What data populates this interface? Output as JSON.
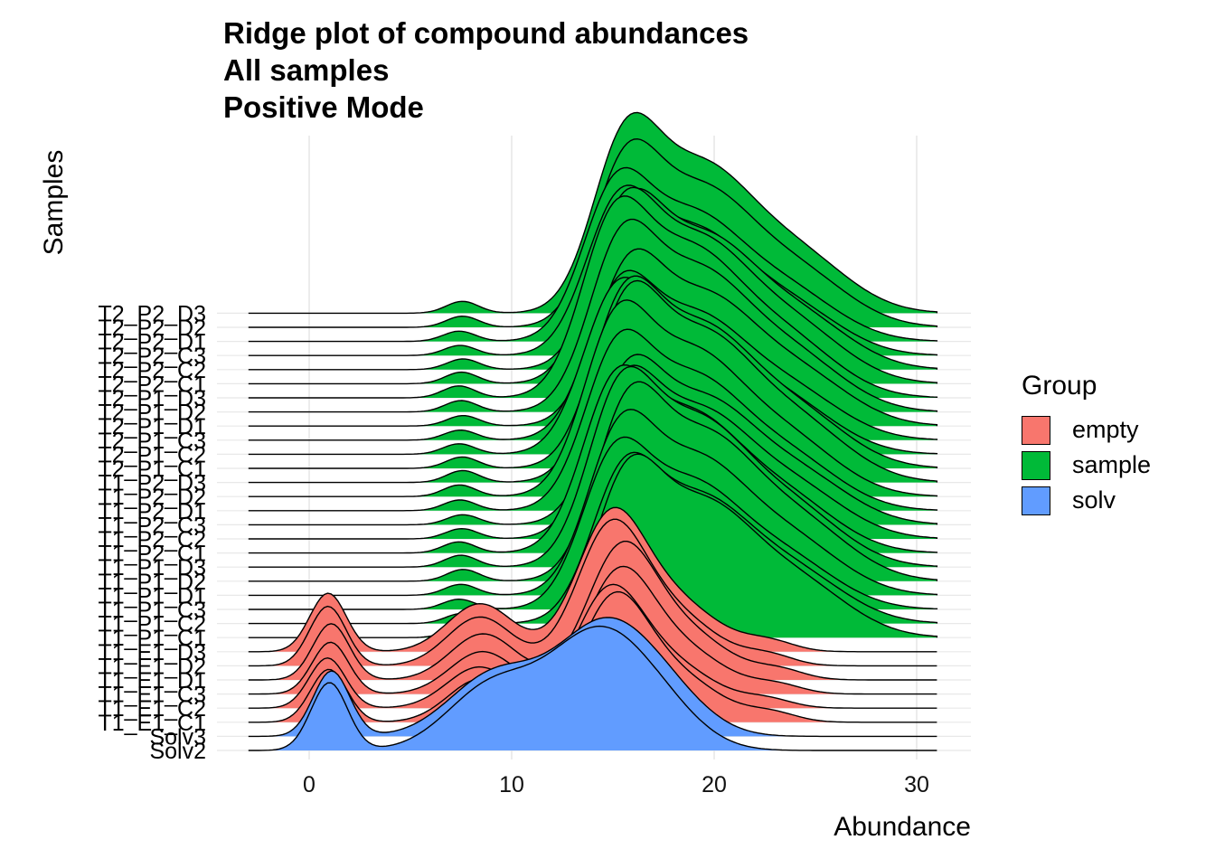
{
  "chart_data": {
    "type": "ridgeline",
    "title": [
      "Ridge plot of compound abundances",
      "All samples",
      "Positive Mode"
    ],
    "xlabel": "Abundance",
    "ylabel": "Samples",
    "xlim": [
      -3,
      31
    ],
    "x_ticks": [
      0,
      10,
      20,
      30
    ],
    "grid": true,
    "legend": {
      "title": "Group",
      "position": "right",
      "items": [
        {
          "name": "empty",
          "color": "#F8766D"
        },
        {
          "name": "sample",
          "color": "#00BA38"
        },
        {
          "name": "solv",
          "color": "#619CFF"
        }
      ]
    },
    "samples": [
      {
        "label": "Solv2",
        "group": "solv"
      },
      {
        "label": "Solv3",
        "group": "solv"
      },
      {
        "label": "T1_E1_C1",
        "group": "empty"
      },
      {
        "label": "T1_E1_C2",
        "group": "empty"
      },
      {
        "label": "T1_E1_C3",
        "group": "empty"
      },
      {
        "label": "T1_E1_D1",
        "group": "empty"
      },
      {
        "label": "T1_E1_D2",
        "group": "empty"
      },
      {
        "label": "T1_E1_D3",
        "group": "empty"
      },
      {
        "label": "T1_P1_C1",
        "group": "sample"
      },
      {
        "label": "T1_P1_C2",
        "group": "sample"
      },
      {
        "label": "T1_P1_C3",
        "group": "sample"
      },
      {
        "label": "T1_P1_D1",
        "group": "sample"
      },
      {
        "label": "T1_P1_D2",
        "group": "sample"
      },
      {
        "label": "T1_P1_D3",
        "group": "sample"
      },
      {
        "label": "T1_P2_C1",
        "group": "sample"
      },
      {
        "label": "T1_P2_C2",
        "group": "sample"
      },
      {
        "label": "T1_P2_C3",
        "group": "sample"
      },
      {
        "label": "T1_P2_D1",
        "group": "sample"
      },
      {
        "label": "T1_P2_D2",
        "group": "sample"
      },
      {
        "label": "T1_P2_D3",
        "group": "sample"
      },
      {
        "label": "T2_P1_C1",
        "group": "sample"
      },
      {
        "label": "T2_P1_C2",
        "group": "sample"
      },
      {
        "label": "T2_P1_C3",
        "group": "sample"
      },
      {
        "label": "T2_P1_D1",
        "group": "sample"
      },
      {
        "label": "T2_P1_D2",
        "group": "sample"
      },
      {
        "label": "T2_P1_D3",
        "group": "sample"
      },
      {
        "label": "T2_P2_C1",
        "group": "sample"
      },
      {
        "label": "T2_P2_C2",
        "group": "sample"
      },
      {
        "label": "T2_P2_C3",
        "group": "sample"
      },
      {
        "label": "T2_P2_D1",
        "group": "sample"
      },
      {
        "label": "T2_P2_D2",
        "group": "sample"
      },
      {
        "label": "T2_P2_D3",
        "group": "sample"
      }
    ],
    "density_components": {
      "solv": [
        [
          1.0,
          0.9,
          0.6
        ],
        [
          9.0,
          2.2,
          0.55
        ],
        [
          14.2,
          2.4,
          1.0
        ],
        [
          17.5,
          2.0,
          0.25
        ]
      ],
      "empty": [
        [
          1.0,
          0.9,
          0.55
        ],
        [
          8.5,
          1.6,
          0.45
        ],
        [
          15.0,
          1.6,
          1.0
        ],
        [
          17.5,
          2.5,
          0.55
        ],
        [
          23.0,
          1.2,
          0.08
        ]
      ],
      "sample": [
        [
          7.5,
          0.8,
          0.08
        ],
        [
          15.3,
          1.6,
          0.95
        ],
        [
          19.0,
          2.6,
          0.95
        ],
        [
          24.0,
          2.5,
          0.35
        ]
      ]
    }
  }
}
